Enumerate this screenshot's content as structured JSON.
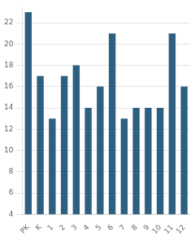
{
  "chart_data": {
    "type": "bar",
    "categories": [
      "PK",
      "K",
      "1",
      "2",
      "3",
      "4",
      "5",
      "6",
      "7",
      "8",
      "9",
      "10",
      "11",
      "12"
    ],
    "values": [
      23,
      17,
      13,
      17,
      18,
      14,
      16,
      21,
      13,
      14,
      14,
      14,
      21,
      16
    ],
    "color": "#2d6080",
    "ylim": [
      4,
      23.5
    ],
    "yticks": [
      4,
      6,
      8,
      10,
      12,
      14,
      16,
      18,
      20,
      22
    ],
    "grid": true
  }
}
